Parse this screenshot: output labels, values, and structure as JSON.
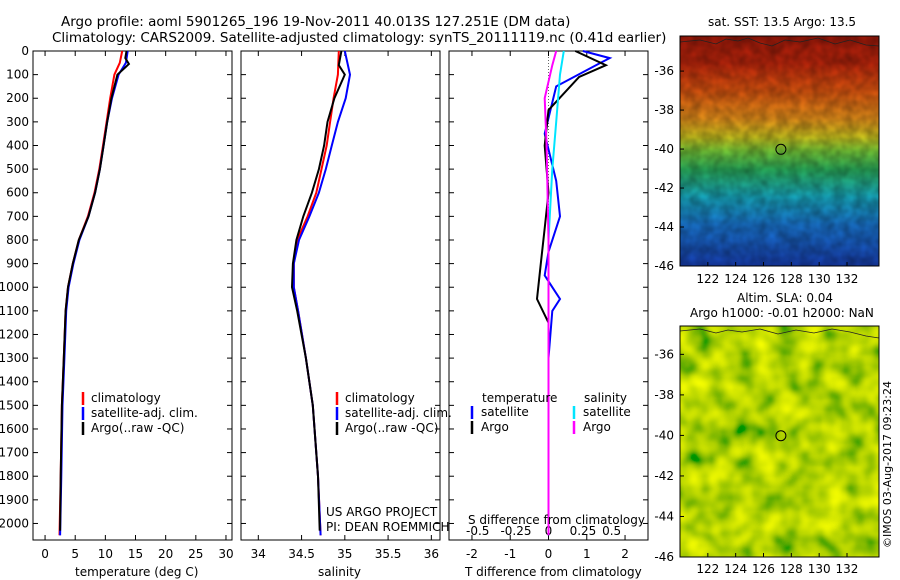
{
  "header": {
    "line1": "Argo profile: aoml 5901265_196 19-Nov-2011 40.013S 127.251E (DM data)",
    "line2": "Climatology: CARS2009. Satellite-adjusted climatology: synTS_20111119.nc (0.41d earlier)"
  },
  "credits": {
    "project": "US ARGO PROJECT",
    "pi": "PI: DEAN ROEMMICH",
    "imos": "©IMOS 03-Aug-2017 09:23:24"
  },
  "colors": {
    "climatology": "#ff0000",
    "satellite": "#0000ff",
    "argo": "#000000",
    "s_satellite": "#00e5ff",
    "s_argo": "#ff00ff"
  },
  "chart_data": [
    {
      "type": "line",
      "title": "",
      "xlabel": "temperature (deg C)",
      "ylabel": "",
      "xlim": [
        -2,
        31
      ],
      "ylim": [
        2070,
        0
      ],
      "xticks": [
        0,
        5,
        10,
        15,
        20,
        25,
        30
      ],
      "yticks": [
        0,
        100,
        200,
        300,
        400,
        500,
        600,
        700,
        800,
        900,
        1000,
        1100,
        1200,
        1300,
        1400,
        1500,
        1600,
        1700,
        1800,
        1900,
        2000
      ],
      "legend": [
        "climatology",
        "satellite-adj. clim.",
        "Argo(..raw -QC)"
      ],
      "series": [
        {
          "name": "climatology",
          "color": "#ff0000",
          "x": [
            12.8,
            12.4,
            11.5,
            10.8,
            10.2,
            9.6,
            9.0,
            8.2,
            7.1,
            5.6,
            4.6,
            3.8,
            3.4,
            3.1,
            2.8,
            2.6,
            2.4
          ],
          "y": [
            0,
            50,
            100,
            200,
            300,
            400,
            500,
            600,
            700,
            800,
            900,
            1000,
            1100,
            1300,
            1500,
            1800,
            2050
          ]
        },
        {
          "name": "satellite-adj. clim.",
          "color": "#0000ff",
          "x": [
            13.7,
            13.4,
            12.2,
            11.1,
            10.3,
            9.7,
            9.1,
            8.3,
            7.2,
            5.7,
            4.7,
            3.9,
            3.5,
            3.2,
            2.9,
            2.7,
            2.5
          ],
          "y": [
            0,
            50,
            100,
            200,
            300,
            400,
            500,
            600,
            700,
            800,
            900,
            1000,
            1100,
            1300,
            1500,
            1800,
            2050
          ]
        },
        {
          "name": "Argo(..raw -QC)",
          "color": "#000000",
          "x": [
            13.5,
            13.3,
            13.9,
            12.0,
            11.0,
            10.3,
            9.7,
            9.1,
            8.3,
            7.2,
            5.6,
            4.6,
            3.8,
            3.4,
            3.1,
            2.8,
            2.6,
            2.5
          ],
          "y": [
            0,
            30,
            55,
            100,
            200,
            300,
            400,
            500,
            600,
            700,
            800,
            900,
            1000,
            1100,
            1300,
            1500,
            1800,
            2030
          ]
        }
      ]
    },
    {
      "type": "line",
      "title": "",
      "xlabel": "salinity",
      "ylabel": "",
      "xlim": [
        33.8,
        36.1
      ],
      "ylim": [
        2070,
        0
      ],
      "xticks": [
        34,
        34.5,
        35,
        35.5,
        36
      ],
      "legend": [
        "climatology",
        "satellite-adj. clim.",
        "Argo(..raw -QC)"
      ],
      "series": [
        {
          "name": "climatology",
          "color": "#ff0000",
          "x": [
            34.93,
            34.92,
            34.87,
            34.83,
            34.79,
            34.73,
            34.67,
            34.57,
            34.45,
            34.41,
            34.41,
            34.46,
            34.55,
            34.63,
            34.69,
            34.72
          ],
          "y": [
            0,
            100,
            200,
            300,
            400,
            500,
            600,
            700,
            800,
            900,
            1000,
            1100,
            1300,
            1500,
            1800,
            2050
          ]
        },
        {
          "name": "satellite-adj. clim.",
          "color": "#0000ff",
          "x": [
            35.0,
            35.06,
            35.01,
            34.92,
            34.85,
            34.78,
            34.7,
            34.59,
            34.47,
            34.41,
            34.41,
            34.46,
            34.55,
            34.63,
            34.69,
            34.72
          ],
          "y": [
            0,
            100,
            200,
            300,
            400,
            500,
            600,
            700,
            800,
            900,
            1000,
            1100,
            1300,
            1500,
            1800,
            2050
          ]
        },
        {
          "name": "Argo(..raw -QC)",
          "color": "#000000",
          "x": [
            34.96,
            34.93,
            35.0,
            34.88,
            34.8,
            34.76,
            34.7,
            34.62,
            34.52,
            34.44,
            34.4,
            34.39,
            34.45,
            34.55,
            34.63,
            34.69,
            34.71
          ],
          "y": [
            0,
            60,
            100,
            200,
            300,
            400,
            500,
            600,
            700,
            800,
            900,
            1000,
            1100,
            1300,
            1500,
            1800,
            2030
          ]
        }
      ],
      "annotations": [
        "US ARGO PROJECT",
        "PI: DEAN ROEMMICH"
      ]
    },
    {
      "type": "line",
      "title": "S difference from climatology",
      "xlabel": "T difference from climatology",
      "xlim": [
        -2.6,
        2.6
      ],
      "ylim": [
        2070,
        0
      ],
      "xticks": [
        -2,
        -1,
        0,
        1,
        2
      ],
      "xticks_top_label": [
        "-0.5",
        "-0.25",
        "0",
        "0.25",
        "0.5"
      ],
      "legend": [
        "temperature",
        "satellite",
        "Argo",
        "salinity",
        "satellite",
        "Argo"
      ],
      "series": [
        {
          "name": "temperature satellite",
          "color": "#0000ff",
          "x": [
            0.9,
            1.6,
            1.3,
            0.2,
            -0.1,
            0.2,
            0.3,
            0.0,
            -0.1,
            0.1,
            0.3,
            0.1,
            0.0,
            0.0,
            0.0
          ],
          "y": [
            0,
            30,
            55,
            150,
            350,
            550,
            700,
            850,
            950,
            1000,
            1050,
            1100,
            1300,
            1700,
            2050
          ]
        },
        {
          "name": "temperature Argo",
          "color": "#000000",
          "x": [
            0.7,
            1.5,
            0.8,
            0.0,
            -0.1,
            0.0,
            -0.1,
            -0.2,
            -0.3,
            0.0,
            0.0,
            0.0
          ],
          "y": [
            0,
            60,
            110,
            250,
            400,
            600,
            750,
            900,
            1050,
            1150,
            1500,
            2050
          ]
        },
        {
          "name": "salinity satellite",
          "color": "#00e5ff",
          "x": [
            0.4,
            0.3,
            0.2,
            0.1,
            0.0,
            0.0,
            0.0,
            0.0
          ],
          "y": [
            0,
            100,
            300,
            500,
            800,
            1100,
            1600,
            2050
          ]
        },
        {
          "name": "salinity Argo",
          "color": "#ff00ff",
          "x": [
            0.2,
            0.1,
            -0.1,
            -0.05,
            0.0,
            0.0,
            0.0
          ],
          "y": [
            0,
            60,
            200,
            400,
            800,
            1500,
            2050
          ]
        }
      ]
    },
    {
      "type": "heatmap",
      "title": "sat. SST: 13.5  Argo: 13.5",
      "xticks": [
        122,
        124,
        126,
        128,
        130,
        132
      ],
      "yticks": [
        -36,
        -38,
        -40,
        -42,
        -44,
        -46
      ],
      "xlim": [
        120,
        134.3
      ],
      "ylim": [
        -46,
        -34.2
      ],
      "marker": {
        "lon": 127.251,
        "lat": -40.013
      }
    },
    {
      "type": "heatmap",
      "title": "Altim. SLA: 0.04",
      "subtitle": "Argo h1000: -0.01 h2000: NaN",
      "xticks": [
        122,
        124,
        126,
        128,
        130,
        132
      ],
      "yticks": [
        -36,
        -38,
        -40,
        -42,
        -44,
        -46
      ],
      "xlim": [
        120,
        134.3
      ],
      "ylim": [
        -46,
        -34.6
      ],
      "marker": {
        "lon": 127.251,
        "lat": -40.013
      }
    }
  ]
}
